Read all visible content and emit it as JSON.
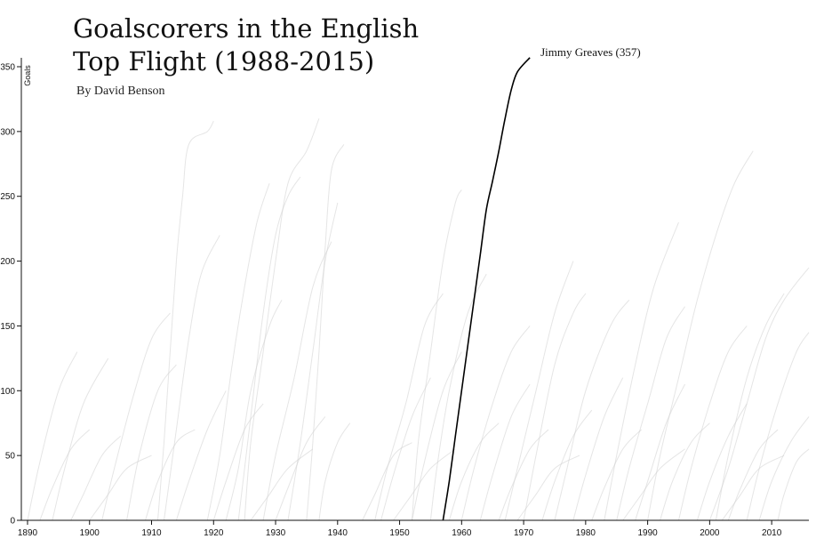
{
  "title": [
    "Goalscorers in the English",
    "Top Flight (1988-2015)"
  ],
  "byline": "By David Benson",
  "chart_data": {
    "type": "line",
    "title": "Goalscorers in the English Top Flight (1988-2015)",
    "subtitle": "By David Benson",
    "xlabel": "",
    "ylabel": "Goals",
    "xlim": [
      1889,
      2016
    ],
    "ylim": [
      0,
      350
    ],
    "x_ticks": [
      1890,
      1900,
      1910,
      1920,
      1930,
      1940,
      1950,
      1960,
      1970,
      1980,
      1990,
      2000,
      2010
    ],
    "y_ticks": [
      0,
      50,
      100,
      150,
      200,
      250,
      300,
      350
    ],
    "grid": false,
    "legend": "none",
    "background_series_color": "#cfcfcf",
    "highlight_color": "#000000",
    "highlight": {
      "name": "Jimmy Greaves",
      "label": "Jimmy Greaves (357)",
      "points": [
        [
          1957,
          0
        ],
        [
          1958,
          30
        ],
        [
          1959,
          65
        ],
        [
          1960,
          100
        ],
        [
          1961,
          135
        ],
        [
          1962,
          170
        ],
        [
          1963,
          205
        ],
        [
          1964,
          240
        ],
        [
          1965,
          262
        ],
        [
          1966,
          285
        ],
        [
          1967,
          310
        ],
        [
          1968,
          332
        ],
        [
          1969,
          346
        ],
        [
          1971,
          357
        ]
      ]
    },
    "series": [
      {
        "points": [
          [
            1911,
            0
          ],
          [
            1912,
            60
          ],
          [
            1913,
            130
          ],
          [
            1914,
            200
          ],
          [
            1915,
            250
          ],
          [
            1916,
            290
          ],
          [
            1919,
            300
          ],
          [
            1920,
            308
          ]
        ]
      },
      {
        "points": [
          [
            1912,
            0
          ],
          [
            1914,
            70
          ],
          [
            1916,
            140
          ],
          [
            1918,
            190
          ],
          [
            1921,
            220
          ]
        ]
      },
      {
        "points": [
          [
            1925,
            0
          ],
          [
            1926,
            60
          ],
          [
            1928,
            130
          ],
          [
            1930,
            200
          ],
          [
            1932,
            260
          ],
          [
            1935,
            285
          ],
          [
            1937,
            310
          ]
        ]
      },
      {
        "points": [
          [
            1924,
            0
          ],
          [
            1926,
            80
          ],
          [
            1928,
            160
          ],
          [
            1930,
            220
          ],
          [
            1932,
            250
          ],
          [
            1934,
            265
          ]
        ]
      },
      {
        "points": [
          [
            1935,
            0
          ],
          [
            1936,
            60
          ],
          [
            1937,
            130
          ],
          [
            1938,
            210
          ],
          [
            1939,
            270
          ],
          [
            1941,
            290
          ]
        ]
      },
      {
        "points": [
          [
            1919,
            0
          ],
          [
            1921,
            50
          ],
          [
            1923,
            120
          ],
          [
            1925,
            180
          ],
          [
            1927,
            230
          ],
          [
            1929,
            260
          ]
        ]
      },
      {
        "points": [
          [
            1932,
            0
          ],
          [
            1934,
            60
          ],
          [
            1936,
            130
          ],
          [
            1938,
            200
          ],
          [
            1940,
            245
          ]
        ]
      },
      {
        "points": [
          [
            1952,
            0
          ],
          [
            1953,
            60
          ],
          [
            1955,
            130
          ],
          [
            1957,
            200
          ],
          [
            1959,
            245
          ],
          [
            1960,
            255
          ]
        ]
      },
      {
        "points": [
          [
            1990,
            0
          ],
          [
            1992,
            50
          ],
          [
            1995,
            110
          ],
          [
            1998,
            170
          ],
          [
            2001,
            220
          ],
          [
            2004,
            260
          ],
          [
            2007,
            285
          ]
        ]
      },
      {
        "points": [
          [
            1983,
            0
          ],
          [
            1985,
            50
          ],
          [
            1988,
            120
          ],
          [
            1991,
            180
          ],
          [
            1995,
            230
          ]
        ]
      },
      {
        "points": [
          [
            2001,
            0
          ],
          [
            2003,
            50
          ],
          [
            2006,
            110
          ],
          [
            2009,
            150
          ],
          [
            2012,
            175
          ]
        ]
      },
      {
        "points": [
          [
            2000,
            0
          ],
          [
            2003,
            40
          ],
          [
            2006,
            90
          ],
          [
            2009,
            140
          ],
          [
            2012,
            170
          ],
          [
            2016,
            195
          ]
        ]
      },
      {
        "points": [
          [
            1967,
            0
          ],
          [
            1969,
            40
          ],
          [
            1972,
            100
          ],
          [
            1975,
            160
          ],
          [
            1978,
            200
          ]
        ]
      },
      {
        "points": [
          [
            1890,
            0
          ],
          [
            1892,
            45
          ],
          [
            1895,
            100
          ],
          [
            1898,
            130
          ]
        ]
      },
      {
        "points": [
          [
            1894,
            0
          ],
          [
            1896,
            40
          ],
          [
            1899,
            90
          ],
          [
            1903,
            125
          ]
        ]
      },
      {
        "points": [
          [
            1902,
            0
          ],
          [
            1904,
            40
          ],
          [
            1907,
            95
          ],
          [
            1910,
            140
          ],
          [
            1913,
            160
          ]
        ]
      },
      {
        "points": [
          [
            1955,
            0
          ],
          [
            1956,
            40
          ],
          [
            1958,
            100
          ],
          [
            1961,
            160
          ],
          [
            1964,
            190
          ]
        ]
      },
      {
        "points": [
          [
            1946,
            0
          ],
          [
            1948,
            40
          ],
          [
            1951,
            90
          ],
          [
            1954,
            150
          ],
          [
            1957,
            175
          ]
        ]
      },
      {
        "points": [
          [
            1975,
            0
          ],
          [
            1977,
            40
          ],
          [
            1980,
            100
          ],
          [
            1984,
            150
          ],
          [
            1987,
            170
          ]
        ]
      },
      {
        "points": [
          [
            2006,
            0
          ],
          [
            2008,
            40
          ],
          [
            2011,
            90
          ],
          [
            2014,
            130
          ],
          [
            2016,
            145
          ]
        ]
      },
      {
        "points": [
          [
            1922,
            0
          ],
          [
            1924,
            40
          ],
          [
            1926,
            100
          ],
          [
            1929,
            150
          ],
          [
            1931,
            170
          ]
        ]
      },
      {
        "points": [
          [
            1928,
            0
          ],
          [
            1930,
            50
          ],
          [
            1933,
            110
          ],
          [
            1936,
            180
          ],
          [
            1939,
            215
          ]
        ]
      },
      {
        "points": [
          [
            1960,
            0
          ],
          [
            1962,
            40
          ],
          [
            1965,
            90
          ],
          [
            1968,
            130
          ],
          [
            1971,
            150
          ]
        ]
      },
      {
        "points": [
          [
            1970,
            0
          ],
          [
            1972,
            50
          ],
          [
            1975,
            120
          ],
          [
            1978,
            160
          ],
          [
            1980,
            175
          ]
        ]
      },
      {
        "points": [
          [
            1985,
            0
          ],
          [
            1987,
            40
          ],
          [
            1990,
            90
          ],
          [
            1993,
            140
          ],
          [
            1996,
            165
          ]
        ]
      },
      {
        "points": [
          [
            1995,
            0
          ],
          [
            1997,
            40
          ],
          [
            2000,
            90
          ],
          [
            2003,
            130
          ],
          [
            2006,
            150
          ]
        ]
      },
      {
        "points": [
          [
            1906,
            0
          ],
          [
            1908,
            50
          ],
          [
            1911,
            100
          ],
          [
            1914,
            120
          ]
        ]
      },
      {
        "points": [
          [
            1914,
            0
          ],
          [
            1916,
            30
          ],
          [
            1919,
            70
          ],
          [
            1922,
            100
          ]
        ]
      },
      {
        "points": [
          [
            1937,
            0
          ],
          [
            1938,
            30
          ],
          [
            1940,
            60
          ],
          [
            1942,
            75
          ]
        ]
      },
      {
        "points": [
          [
            1947,
            0
          ],
          [
            1949,
            35
          ],
          [
            1952,
            80
          ],
          [
            1955,
            110
          ]
        ]
      },
      {
        "points": [
          [
            1952,
            0
          ],
          [
            1954,
            45
          ],
          [
            1957,
            100
          ],
          [
            1960,
            130
          ]
        ]
      },
      {
        "points": [
          [
            1963,
            0
          ],
          [
            1965,
            35
          ],
          [
            1968,
            80
          ],
          [
            1971,
            105
          ]
        ]
      },
      {
        "points": [
          [
            1978,
            0
          ],
          [
            1980,
            35
          ],
          [
            1983,
            80
          ],
          [
            1986,
            110
          ]
        ]
      },
      {
        "points": [
          [
            1988,
            0
          ],
          [
            1990,
            30
          ],
          [
            1993,
            75
          ],
          [
            1996,
            105
          ]
        ]
      },
      {
        "points": [
          [
            1998,
            0
          ],
          [
            2000,
            30
          ],
          [
            2003,
            65
          ],
          [
            2006,
            90
          ]
        ]
      },
      {
        "points": [
          [
            2008,
            0
          ],
          [
            2010,
            30
          ],
          [
            2013,
            60
          ],
          [
            2016,
            80
          ]
        ]
      },
      {
        "points": [
          [
            1892,
            0
          ],
          [
            1894,
            25
          ],
          [
            1897,
            55
          ],
          [
            1900,
            70
          ]
        ]
      },
      {
        "points": [
          [
            1897,
            0
          ],
          [
            1899,
            20
          ],
          [
            1902,
            50
          ],
          [
            1905,
            65
          ]
        ]
      },
      {
        "points": [
          [
            1909,
            0
          ],
          [
            1911,
            30
          ],
          [
            1914,
            60
          ],
          [
            1917,
            70
          ]
        ]
      },
      {
        "points": [
          [
            1920,
            0
          ],
          [
            1922,
            30
          ],
          [
            1925,
            70
          ],
          [
            1928,
            90
          ]
        ]
      },
      {
        "points": [
          [
            1930,
            0
          ],
          [
            1932,
            25
          ],
          [
            1935,
            60
          ],
          [
            1938,
            80
          ]
        ]
      },
      {
        "points": [
          [
            1944,
            0
          ],
          [
            1946,
            20
          ],
          [
            1949,
            50
          ],
          [
            1952,
            60
          ]
        ]
      },
      {
        "points": [
          [
            1958,
            0
          ],
          [
            1960,
            30
          ],
          [
            1963,
            60
          ],
          [
            1966,
            75
          ]
        ]
      },
      {
        "points": [
          [
            1966,
            0
          ],
          [
            1968,
            25
          ],
          [
            1971,
            55
          ],
          [
            1974,
            70
          ]
        ]
      },
      {
        "points": [
          [
            1973,
            0
          ],
          [
            1975,
            30
          ],
          [
            1978,
            65
          ],
          [
            1981,
            85
          ]
        ]
      },
      {
        "points": [
          [
            1981,
            0
          ],
          [
            1983,
            25
          ],
          [
            1986,
            55
          ],
          [
            1989,
            70
          ]
        ]
      },
      {
        "points": [
          [
            1992,
            0
          ],
          [
            1994,
            30
          ],
          [
            1997,
            60
          ],
          [
            2000,
            75
          ]
        ]
      },
      {
        "points": [
          [
            2003,
            0
          ],
          [
            2005,
            25
          ],
          [
            2008,
            55
          ],
          [
            2011,
            70
          ]
        ]
      },
      {
        "points": [
          [
            2011,
            0
          ],
          [
            2012,
            20
          ],
          [
            2014,
            45
          ],
          [
            2016,
            55
          ]
        ]
      },
      {
        "points": [
          [
            1900,
            0
          ],
          [
            1903,
            20
          ],
          [
            1906,
            40
          ],
          [
            1910,
            50
          ]
        ]
      },
      {
        "points": [
          [
            1926,
            0
          ],
          [
            1929,
            20
          ],
          [
            1932,
            40
          ],
          [
            1936,
            55
          ]
        ]
      },
      {
        "points": [
          [
            1949,
            0
          ],
          [
            1952,
            20
          ],
          [
            1955,
            40
          ],
          [
            1959,
            55
          ]
        ]
      },
      {
        "points": [
          [
            1969,
            0
          ],
          [
            1972,
            20
          ],
          [
            1975,
            40
          ],
          [
            1979,
            50
          ]
        ]
      },
      {
        "points": [
          [
            1986,
            0
          ],
          [
            1989,
            20
          ],
          [
            1992,
            40
          ],
          [
            1996,
            55
          ]
        ]
      },
      {
        "points": [
          [
            2002,
            0
          ],
          [
            2005,
            20
          ],
          [
            2008,
            40
          ],
          [
            2012,
            50
          ]
        ]
      }
    ]
  }
}
